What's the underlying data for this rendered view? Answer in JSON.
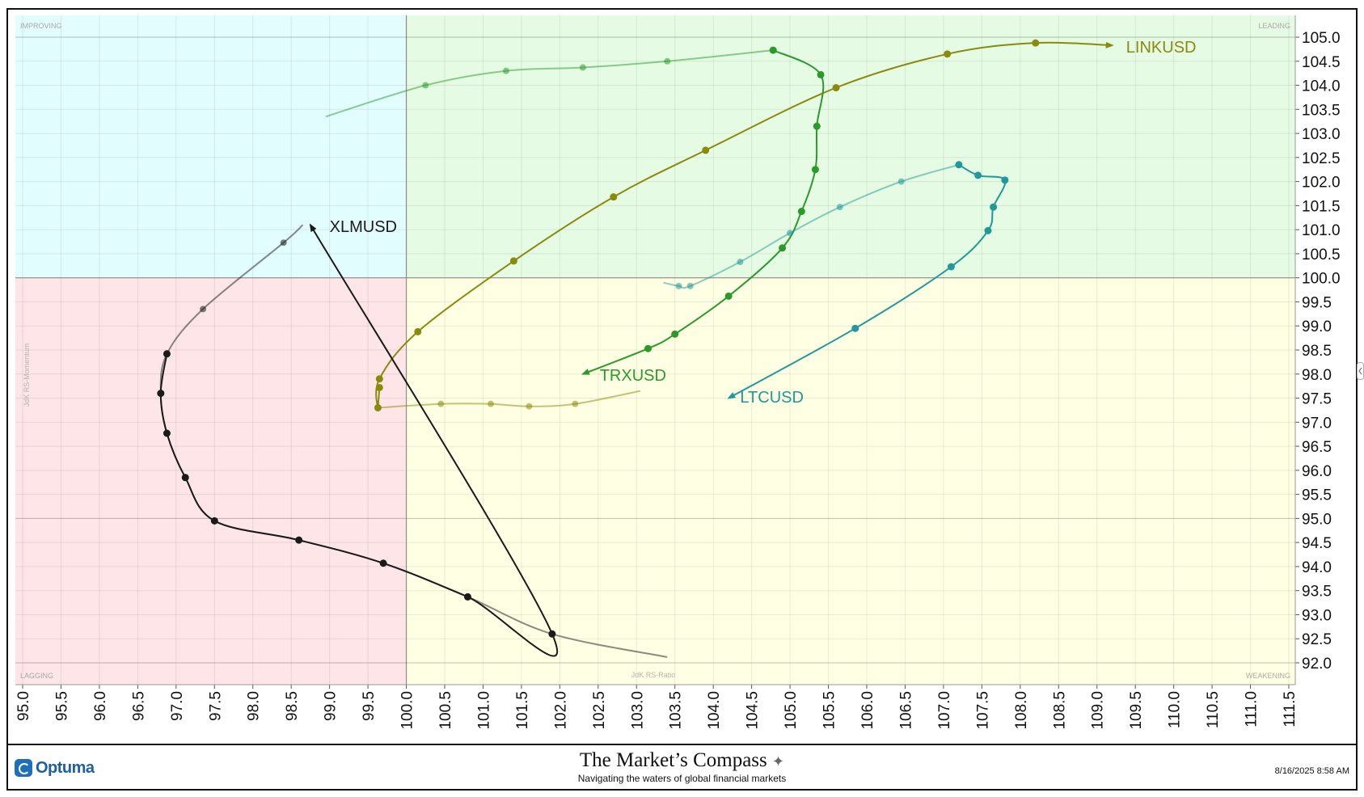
{
  "chart_data": {
    "type": "line",
    "subtype": "relative-rotation-graph",
    "xlabel": "JdK RS-Ratio",
    "ylabel": "JdK RS-Momentum",
    "xlim": [
      95.0,
      111.5
    ],
    "ylim": [
      92.0,
      105.0
    ],
    "x_ticks": [
      "95.0",
      "95.5",
      "96.0",
      "96.5",
      "97.0",
      "97.5",
      "98.0",
      "98.5",
      "99.0",
      "99.5",
      "100.0",
      "100.5",
      "101.0",
      "101.5",
      "102.0",
      "102.5",
      "103.0",
      "103.5",
      "104.0",
      "104.5",
      "105.0",
      "105.5",
      "106.0",
      "106.5",
      "107.0",
      "107.5",
      "108.0",
      "108.5",
      "109.0",
      "109.5",
      "110.0",
      "110.5",
      "111.0",
      "111.5"
    ],
    "y_ticks": [
      "105.0",
      "104.5",
      "104.0",
      "103.5",
      "103.0",
      "102.5",
      "102.0",
      "101.5",
      "101.0",
      "100.5",
      "100.0",
      "99.5",
      "99.0",
      "98.5",
      "98.0",
      "97.5",
      "97.0",
      "96.5",
      "96.0",
      "95.5",
      "95.0",
      "94.5",
      "94.0",
      "93.5",
      "93.0",
      "92.5",
      "92.0"
    ],
    "grid": true,
    "center": [
      100.0,
      100.0
    ],
    "quadrants": [
      {
        "name": "IMPROVING",
        "position": "top-left",
        "color": "#e2fdfe"
      },
      {
        "name": "LEADING",
        "position": "top-right",
        "color": "#e6fbe3"
      },
      {
        "name": "LAGGING",
        "position": "bottom-left",
        "color": "#fee5e7"
      },
      {
        "name": "WEAKENING",
        "position": "bottom-right",
        "color": "#ffffe3"
      }
    ],
    "series": [
      {
        "name": "LINKUSD",
        "color": "#8a8a0c",
        "points": [
          [
            99.65,
            97.72
          ],
          [
            99.63,
            97.3
          ],
          [
            99.65,
            97.9
          ],
          [
            100.15,
            98.88
          ],
          [
            101.4,
            100.35
          ],
          [
            102.7,
            101.68
          ],
          [
            103.9,
            102.65
          ],
          [
            105.6,
            103.95
          ],
          [
            107.05,
            104.65
          ],
          [
            108.2,
            104.88
          ]
        ],
        "history": [
          [
            103.05,
            97.65
          ],
          [
            102.2,
            97.38
          ],
          [
            101.6,
            97.33
          ],
          [
            101.1,
            97.38
          ],
          [
            100.45,
            97.38
          ],
          [
            99.63,
            97.3
          ]
        ],
        "head": [
          109.2,
          104.83
        ],
        "label_anchor": [
          109.38,
          104.8
        ]
      },
      {
        "name": "TRXUSD",
        "color": "#2b9a2b",
        "points": [
          [
            104.78,
            104.73
          ],
          [
            105.4,
            104.22
          ],
          [
            105.35,
            103.15
          ],
          [
            105.33,
            102.25
          ],
          [
            105.15,
            101.38
          ],
          [
            104.9,
            100.62
          ],
          [
            104.2,
            99.62
          ],
          [
            103.5,
            98.83
          ],
          [
            103.15,
            98.53
          ]
        ],
        "history": [
          [
            98.95,
            103.35
          ],
          [
            100.25,
            104.0
          ],
          [
            101.3,
            104.3
          ],
          [
            102.3,
            104.37
          ],
          [
            103.4,
            104.5
          ],
          [
            104.78,
            104.73
          ]
        ],
        "head": [
          102.3,
          98.0
        ],
        "label_anchor": [
          102.52,
          97.98
        ]
      },
      {
        "name": "LTCUSD",
        "color": "#1f9999",
        "points": [
          [
            107.2,
            102.35
          ],
          [
            107.45,
            102.13
          ],
          [
            107.8,
            102.03
          ],
          [
            107.65,
            101.47
          ],
          [
            107.58,
            100.98
          ],
          [
            107.1,
            100.23
          ],
          [
            105.85,
            98.95
          ]
        ],
        "history": [
          [
            103.35,
            99.9
          ],
          [
            103.55,
            99.83
          ],
          [
            103.7,
            99.83
          ],
          [
            104.35,
            100.33
          ],
          [
            105.0,
            100.93
          ],
          [
            105.65,
            101.47
          ],
          [
            106.45,
            102.0
          ],
          [
            107.2,
            102.35
          ]
        ],
        "head": [
          104.2,
          97.5
        ],
        "label_anchor": [
          104.35,
          97.53
        ]
      },
      {
        "name": "XLMUSD",
        "color": "#1a1a1a",
        "points": [
          [
            96.88,
            98.42
          ],
          [
            96.8,
            97.6
          ],
          [
            96.88,
            96.77
          ],
          [
            97.12,
            95.85
          ],
          [
            97.5,
            94.95
          ],
          [
            98.6,
            94.55
          ],
          [
            99.7,
            94.07
          ],
          [
            100.8,
            93.37
          ],
          [
            101.9,
            92.6
          ]
        ],
        "history": [
          [
            103.4,
            92.12
          ],
          [
            101.9,
            92.6
          ],
          [
            100.8,
            93.37
          ],
          [
            99.7,
            94.07
          ],
          [
            98.6,
            94.55
          ],
          [
            97.5,
            94.95
          ],
          [
            97.12,
            95.85
          ],
          [
            96.88,
            96.77
          ],
          [
            96.8,
            97.6
          ],
          [
            96.88,
            98.42
          ],
          [
            97.35,
            99.35
          ],
          [
            98.4,
            100.73
          ],
          [
            98.65,
            101.1
          ]
        ],
        "head": [
          98.75,
          101.1
        ],
        "label_anchor": [
          99.0,
          101.07
        ]
      }
    ]
  },
  "footer": {
    "logo_text": "Optuma",
    "brand_title": "The Market’s Compass",
    "brand_tagline": "Navigating the waters of global financial markets",
    "timestamp": "8/16/2025 8:58 AM"
  }
}
